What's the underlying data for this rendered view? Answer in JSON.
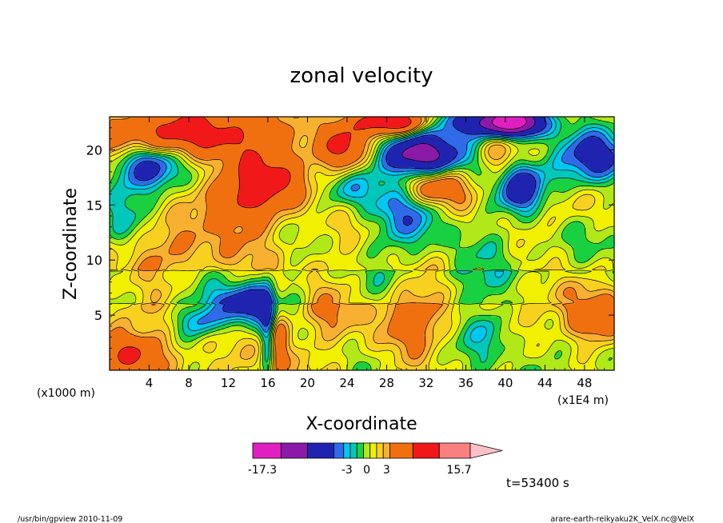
{
  "chart_data": {
    "type": "heatmap",
    "title": "zonal velocity",
    "xlabel": "X-coordinate",
    "ylabel": "Z-coordinate",
    "x_unit_left": "(x1000 m)",
    "x_unit_right": "(x1E4 m)",
    "xlim": [
      0,
      51
    ],
    "ylim": [
      0,
      23
    ],
    "x_ticks": [
      4,
      8,
      12,
      16,
      20,
      24,
      28,
      32,
      36,
      40,
      44,
      48
    ],
    "x_tick_labels": [
      "4",
      "8",
      "12",
      "16",
      "20",
      "24",
      "28",
      "32",
      "36",
      "40",
      "44",
      "48"
    ],
    "y_ticks": [
      5,
      10,
      15,
      20
    ],
    "y_tick_labels": [
      "5",
      "10",
      "15",
      "20"
    ],
    "colorbar": {
      "labels": [
        {
          "value": -17.3,
          "text": "-17.3"
        },
        {
          "value": -3,
          "text": "-3"
        },
        {
          "value": 0,
          "text": "0"
        },
        {
          "value": 3,
          "text": "3"
        },
        {
          "value": 15.7,
          "text": "15.7"
        }
      ],
      "bins": [
        {
          "from": -17.3,
          "to": -13,
          "color": "#e01fc0"
        },
        {
          "from": -13,
          "to": -9,
          "color": "#8c1aa8"
        },
        {
          "from": -9,
          "to": -5,
          "color": "#1f24b0"
        },
        {
          "from": -5,
          "to": -3.5,
          "color": "#2f6be8"
        },
        {
          "from": -3.5,
          "to": -2.5,
          "color": "#00c8f0"
        },
        {
          "from": -2.5,
          "to": -1.5,
          "color": "#00c8b8"
        },
        {
          "from": -1.5,
          "to": -0.5,
          "color": "#18d040"
        },
        {
          "from": -0.5,
          "to": 0.5,
          "color": "#b0e818"
        },
        {
          "from": 0.5,
          "to": 1.5,
          "color": "#f0f000"
        },
        {
          "from": 1.5,
          "to": 2.5,
          "color": "#f8d020"
        },
        {
          "from": 2.5,
          "to": 3.5,
          "color": "#f8b030"
        },
        {
          "from": 3.5,
          "to": 7,
          "color": "#f07010"
        },
        {
          "from": 7,
          "to": 11,
          "color": "#f01818"
        },
        {
          "from": 11,
          "to": 15.7,
          "color": "#f88080"
        }
      ],
      "overflow_color": "#ffc0c8"
    },
    "field_features": [
      {
        "x": 4,
        "z": 18.5,
        "sx": 2.5,
        "sz": 1.5,
        "v": -9
      },
      {
        "x": 10,
        "z": 21.5,
        "sx": 4.5,
        "sz": 1.5,
        "v": 6
      },
      {
        "x": 3,
        "z": 21,
        "sx": 2.5,
        "sz": 1.5,
        "v": 4
      },
      {
        "x": 1.5,
        "z": 14,
        "sx": 2,
        "sz": 2.5,
        "v": -3
      },
      {
        "x": 6,
        "z": 15.5,
        "sx": 2.5,
        "sz": 1.5,
        "v": -2
      },
      {
        "x": 14.5,
        "z": 17,
        "sx": 2.5,
        "sz": 2,
        "v": 5
      },
      {
        "x": 12,
        "z": 15,
        "sx": 3,
        "sz": 1.5,
        "v": 3
      },
      {
        "x": 19,
        "z": 17,
        "sx": 3,
        "sz": 1.5,
        "v": 3
      },
      {
        "x": 21,
        "z": 20.5,
        "sx": 2.5,
        "sz": 1.5,
        "v": 2
      },
      {
        "x": 23.5,
        "z": 20,
        "sx": 1.5,
        "sz": 1.5,
        "v": 6
      },
      {
        "x": 24,
        "z": 16.5,
        "sx": 2.5,
        "sz": 1.5,
        "v": -5
      },
      {
        "x": 29,
        "z": 22.5,
        "sx": 2.5,
        "sz": 0.8,
        "v": 10
      },
      {
        "x": 31.5,
        "z": 19.5,
        "sx": 3,
        "sz": 1.3,
        "v": -12
      },
      {
        "x": 30.5,
        "z": 14.5,
        "sx": 2.5,
        "sz": 2,
        "v": -5
      },
      {
        "x": 32.5,
        "z": 16.5,
        "sx": 2.5,
        "sz": 1.3,
        "v": 6
      },
      {
        "x": 37,
        "z": 22.5,
        "sx": 3,
        "sz": 1,
        "v": -9
      },
      {
        "x": 41,
        "z": 22.5,
        "sx": 2,
        "sz": 0.9,
        "v": -14
      },
      {
        "x": 41.5,
        "z": 16.5,
        "sx": 1.5,
        "sz": 1.5,
        "v": -7
      },
      {
        "x": 39.5,
        "z": 19.5,
        "sx": 1.5,
        "sz": 1.8,
        "v": 4
      },
      {
        "x": 44,
        "z": 17,
        "sx": 2.5,
        "sz": 2,
        "v": -3
      },
      {
        "x": 49,
        "z": 19.5,
        "sx": 2.5,
        "sz": 1.5,
        "v": -6
      },
      {
        "x": 46,
        "z": 15,
        "sx": 2.5,
        "sz": 1.5,
        "v": 3
      },
      {
        "x": 14,
        "z": 6,
        "sx": 2.5,
        "sz": 1.2,
        "v": -8
      },
      {
        "x": 12,
        "z": 4.5,
        "sx": 3,
        "sz": 1.5,
        "v": -2
      },
      {
        "x": 9,
        "z": 4.5,
        "sx": 1.5,
        "sz": 1,
        "v": -4
      },
      {
        "x": 16,
        "z": 3,
        "sx": 0.5,
        "sz": 3,
        "v": -5
      },
      {
        "x": 17,
        "z": 3,
        "sx": 0.8,
        "sz": 3,
        "v": 5
      },
      {
        "x": 30.5,
        "z": 5,
        "sx": 2.5,
        "sz": 2,
        "v": 5
      },
      {
        "x": 38.5,
        "z": 3.5,
        "sx": 1.5,
        "sz": 1.5,
        "v": -3
      },
      {
        "x": 49,
        "z": 4.5,
        "sx": 2.5,
        "sz": 1.5,
        "v": 6
      },
      {
        "x": 46,
        "z": 7,
        "sx": 3,
        "sz": 1.5,
        "v": 4
      },
      {
        "x": 2,
        "z": 1.5,
        "sx": 3,
        "sz": 1.2,
        "v": 4
      },
      {
        "x": 28,
        "z": 11,
        "sx": 4,
        "sz": 1.5,
        "v": -1
      },
      {
        "x": 40,
        "z": 10.5,
        "sx": 3,
        "sz": 1.5,
        "v": -1
      },
      {
        "x": 8,
        "z": 11,
        "sx": 3,
        "sz": 1.5,
        "v": 2
      },
      {
        "x": 22,
        "z": 6,
        "sx": 2.5,
        "sz": 2,
        "v": 2
      }
    ]
  },
  "annotation": {
    "time_label": "t=53400 s"
  },
  "footer": {
    "left": "/usr/bin/gpview   2010-11-09",
    "right": "arare-earth-reikyaku2K_VelX.nc@VelX"
  }
}
